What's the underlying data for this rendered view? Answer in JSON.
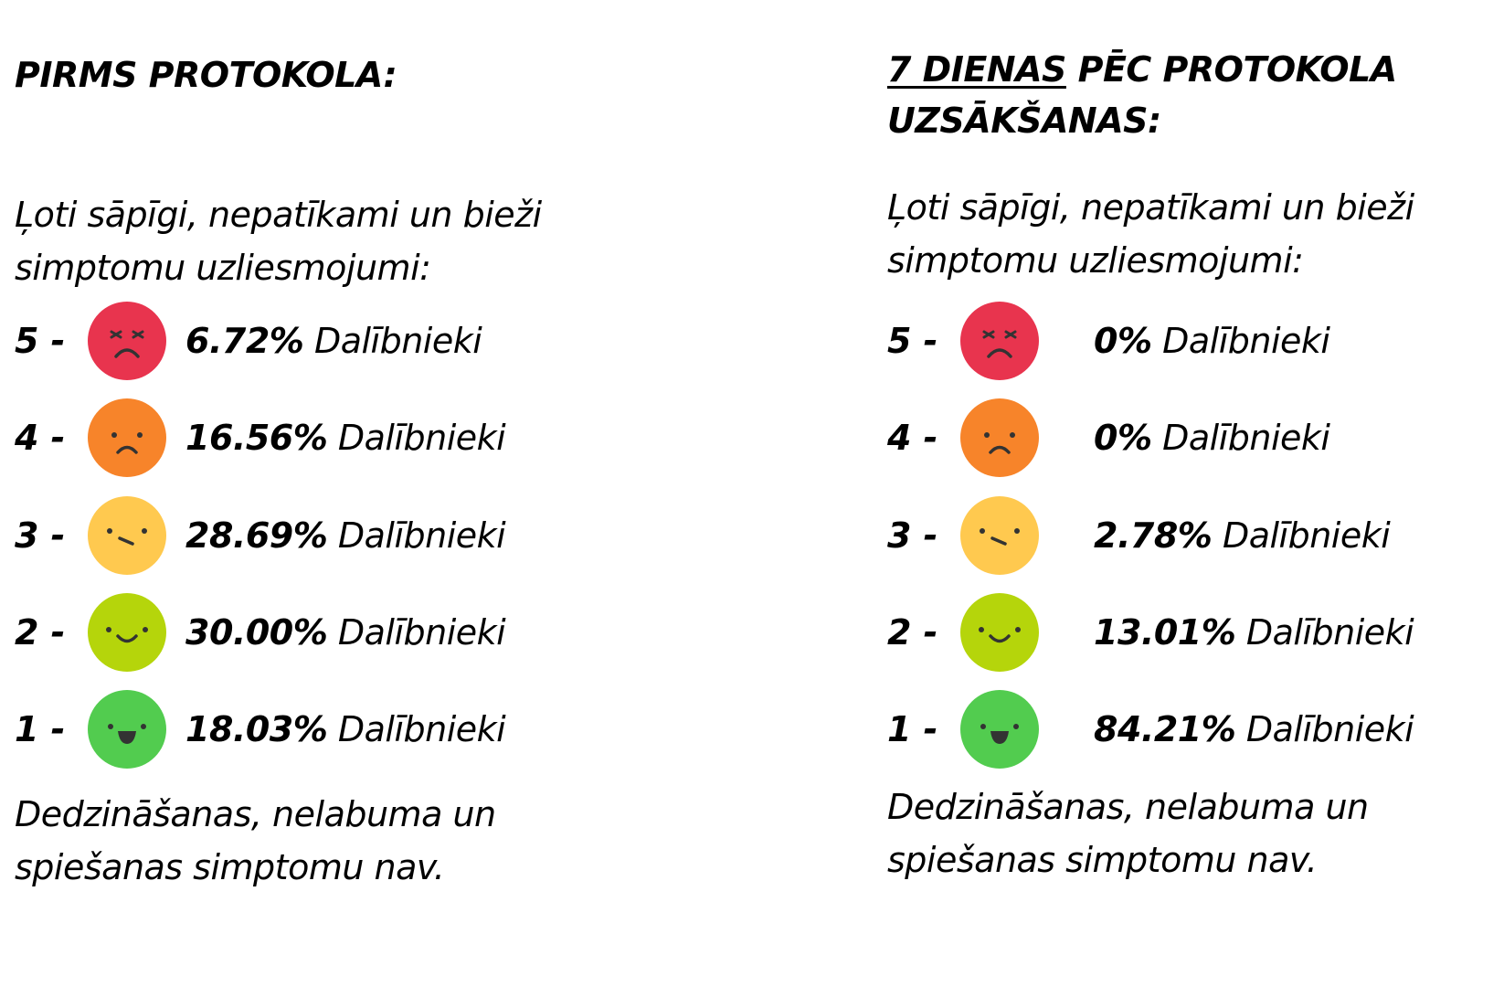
{
  "colors": {
    "level5": "#E8344E",
    "level4": "#F7842A",
    "level3": "#FFC94F",
    "level2": "#B5D50B",
    "level1": "#52CC4F",
    "feature": "#333333"
  },
  "before": {
    "heading": "PIRMS PROTOKOLA:",
    "intro_line1": "Ļoti sāpīgi, nepatīkami un bieži",
    "intro_line2": "simptomu uzliesmojumi:",
    "footer_line1": "Dedzināšanas, nelabuma un",
    "footer_line2": "spiešanas simptomu nav.",
    "levels": [
      {
        "level": "5 -",
        "face": "angry-face-icon",
        "percent": "6.72%",
        "label": "Dalībnieki"
      },
      {
        "level": "4 -",
        "face": "sad-face-icon",
        "percent": "16.56%",
        "label": "Dalībnieki"
      },
      {
        "level": "3 -",
        "face": "uneasy-face-icon",
        "percent": "28.69%",
        "label": "Dalībnieki"
      },
      {
        "level": "2 -",
        "face": "smile-face-icon",
        "percent": "30.00%",
        "label": "Dalībnieki"
      },
      {
        "level": "1 -",
        "face": "happy-face-icon",
        "percent": "18.03%",
        "label": "Dalībnieki"
      }
    ]
  },
  "after": {
    "heading_underlined": "7 DIENAS",
    "heading_rest_line1": " PĒC PROTOKOLA",
    "heading_line2": "UZSĀKŠANAS:",
    "intro_line1": "Ļoti sāpīgi, nepatīkami un bieži",
    "intro_line2": "simptomu uzliesmojumi:",
    "footer_line1": "Dedzināšanas, nelabuma un",
    "footer_line2": "spiešanas simptomu nav.",
    "levels": [
      {
        "level": "5 -",
        "face": "angry-face-icon",
        "percent": "0%",
        "label": "Dalībnieki"
      },
      {
        "level": "4 -",
        "face": "sad-face-icon",
        "percent": "0%",
        "label": "Dalībnieki"
      },
      {
        "level": "3 -",
        "face": "uneasy-face-icon",
        "percent": "2.78%",
        "label": "Dalībnieki"
      },
      {
        "level": "2 -",
        "face": "smile-face-icon",
        "percent": "13.01%",
        "label": "Dalībnieki"
      },
      {
        "level": "1 -",
        "face": "happy-face-icon",
        "percent": "84.21%",
        "label": "Dalībnieki"
      }
    ]
  }
}
